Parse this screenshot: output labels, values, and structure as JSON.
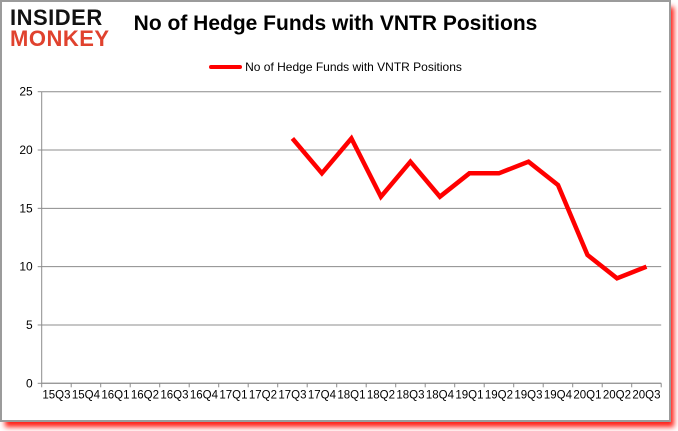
{
  "logo": {
    "line1": "INSIDER",
    "line2": "MONKEY",
    "accent_color": "#E0422E"
  },
  "header": {
    "title": "No of Hedge Funds with VNTR Positions"
  },
  "legend": {
    "label": "No of Hedge Funds with VNTR Positions",
    "line_color": "#FF0000"
  },
  "colors": {
    "line": "#FF0000",
    "grid": "#8C8C8C",
    "axis": "#8C8C8C",
    "text": "#000000",
    "background": "#FFFFFF",
    "frame_border": "#9B9B9B",
    "frame_shadow": "#FF0000"
  },
  "chart_data": {
    "type": "line",
    "title": "No of Hedge Funds with VNTR Positions",
    "xlabel": "",
    "ylabel": "",
    "categories": [
      "15Q3",
      "15Q4",
      "16Q1",
      "16Q2",
      "16Q3",
      "16Q4",
      "17Q1",
      "17Q2",
      "17Q3",
      "17Q4",
      "18Q1",
      "18Q2",
      "18Q3",
      "18Q4",
      "19Q1",
      "19Q2",
      "19Q3",
      "19Q4",
      "20Q1",
      "20Q2",
      "20Q3"
    ],
    "series": [
      {
        "name": "No of Hedge Funds with VNTR Positions",
        "color": "#FF0000",
        "values": [
          null,
          null,
          null,
          null,
          null,
          null,
          null,
          null,
          21,
          18,
          21,
          16,
          19,
          16,
          18,
          18,
          19,
          17,
          11,
          9,
          10
        ]
      }
    ],
    "ylim": [
      0,
      25
    ],
    "yticks": [
      0,
      5,
      10,
      15,
      20,
      25
    ],
    "grid": true,
    "legend_position": "top"
  }
}
